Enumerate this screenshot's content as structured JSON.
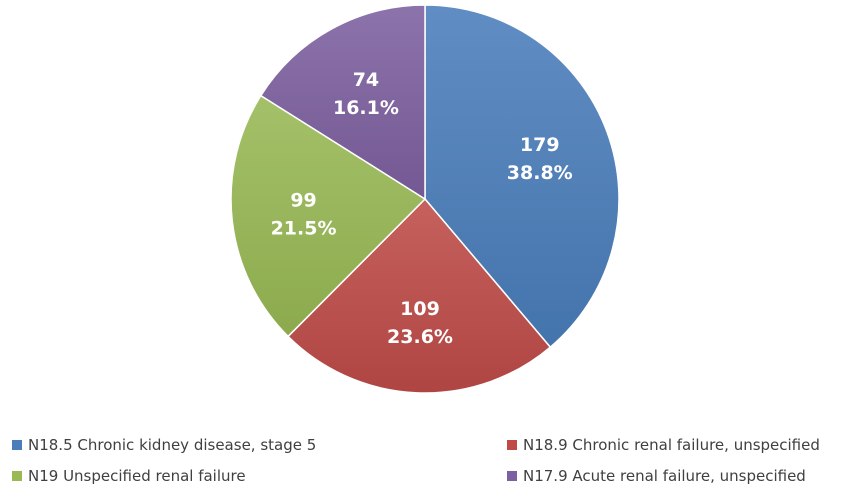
{
  "chart_data": {
    "type": "pie",
    "title": "",
    "start_angle_deg": 0,
    "direction": "clockwise",
    "legend_position": "bottom",
    "slices": [
      {
        "label": "N18.5 Chronic kidney disease, stage 5",
        "value": 179,
        "percent_label": "38.8%",
        "color": "#4a7ebb"
      },
      {
        "label": "N18.9 Chronic renal failure, unspecified",
        "value": 109,
        "percent_label": "23.6%",
        "color": "#be4b48"
      },
      {
        "label": "N19 Unspecified renal failure",
        "value": 99,
        "percent_label": "21.5%",
        "color": "#98b954"
      },
      {
        "label": "N17.9 Acute renal failure, unspecified",
        "value": 74,
        "percent_label": "16.1%",
        "color": "#7d60a0"
      }
    ]
  }
}
